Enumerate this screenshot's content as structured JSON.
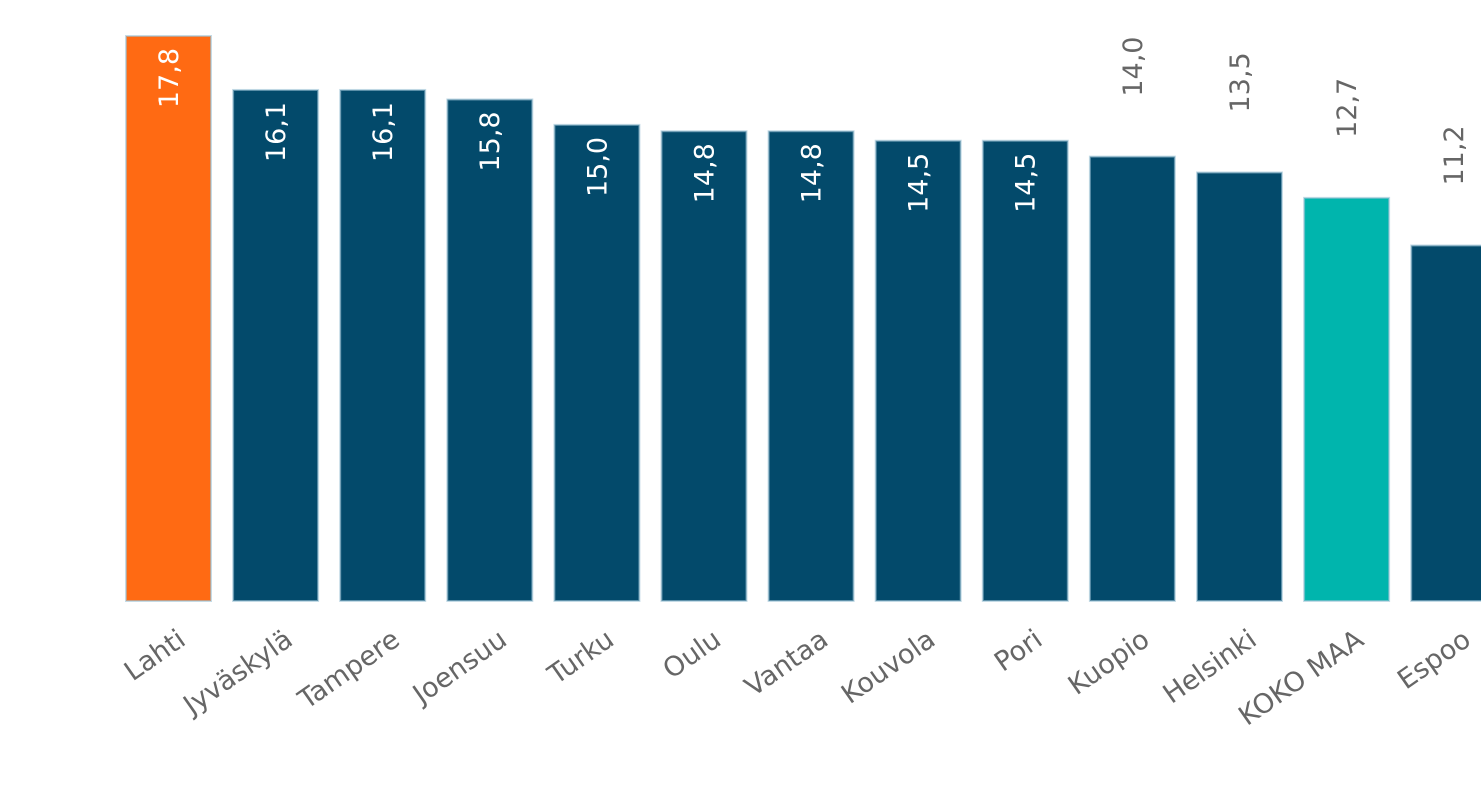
{
  "chart_data": {
    "type": "bar",
    "categories": [
      "Lahti",
      "Jyväskylä",
      "Tampere",
      "Joensuu",
      "Turku",
      "Oulu",
      "Vantaa",
      "Kouvola",
      "Pori",
      "Kuopio",
      "Helsinki",
      "KOKO MAA",
      "Espoo"
    ],
    "values": [
      17.8,
      16.1,
      16.1,
      15.8,
      15.0,
      14.8,
      14.8,
      14.5,
      14.5,
      14.0,
      13.5,
      12.7,
      11.2
    ],
    "value_labels": [
      "17,8",
      "16,1",
      "16,1",
      "15,8",
      "15,0",
      "14,8",
      "14,8",
      "14,5",
      "14,5",
      "14,0",
      "13,5",
      "12,7",
      "11,2"
    ],
    "colors": [
      "#ff6a13",
      "#034a6b",
      "#034a6b",
      "#034a6b",
      "#034a6b",
      "#034a6b",
      "#034a6b",
      "#034a6b",
      "#034a6b",
      "#034a6b",
      "#034a6b",
      "#00b5ad",
      "#034a6b"
    ],
    "label_positions": [
      "inside",
      "inside",
      "inside",
      "inside",
      "inside",
      "inside",
      "inside",
      "inside",
      "inside",
      "outside",
      "outside",
      "outside",
      "outside"
    ]
  }
}
